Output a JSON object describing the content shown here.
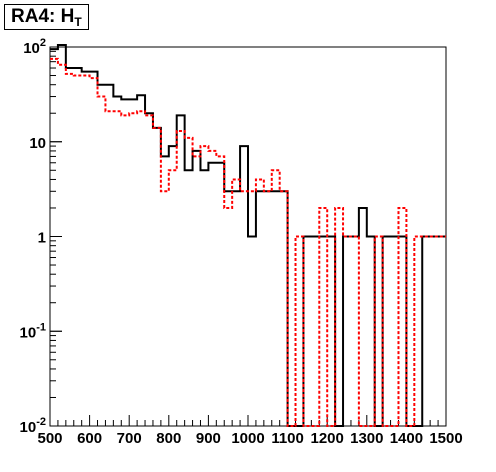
{
  "chart_data": {
    "type": "histogram",
    "title": "RA4: H",
    "title_subscript": "T",
    "xlabel": "",
    "ylabel": "",
    "xlim": [
      500,
      1500
    ],
    "ylim": [
      0.01,
      100
    ],
    "yscale": "log",
    "grid": false,
    "legend": "none",
    "x_ticks": [
      500,
      600,
      700,
      800,
      900,
      1000,
      1100,
      1200,
      1300,
      1400,
      1500
    ],
    "x_tick_labels": [
      "500",
      "600",
      "700",
      "800",
      "900",
      "1000",
      "1100",
      "1200",
      "1300",
      "1400",
      "1500"
    ],
    "y_ticks": [
      {
        "value": 0.01,
        "base": "10",
        "exp": "-2"
      },
      {
        "value": 0.1,
        "base": "10",
        "exp": "-1"
      },
      {
        "value": 1,
        "base": "1",
        "exp": ""
      },
      {
        "value": 10,
        "base": "10",
        "exp": ""
      },
      {
        "value": 100,
        "base": "10",
        "exp": "2"
      }
    ],
    "bin_edges": [
      500,
      520,
      540,
      560,
      580,
      600,
      620,
      640,
      660,
      680,
      700,
      720,
      740,
      760,
      780,
      800,
      820,
      840,
      860,
      880,
      900,
      920,
      940,
      960,
      980,
      1000,
      1020,
      1040,
      1060,
      1080,
      1100,
      1120,
      1140,
      1160,
      1180,
      1200,
      1220,
      1240,
      1260,
      1280,
      1300,
      1320,
      1340,
      1360,
      1380,
      1400,
      1420,
      1440,
      1460,
      1480,
      1500
    ],
    "series": [
      {
        "color": "#000000",
        "line_style": "solid",
        "values": [
          95,
          105,
          60,
          60,
          55,
          55,
          40,
          40,
          30,
          28,
          28,
          31,
          20,
          14,
          7,
          9,
          19,
          5,
          8,
          5,
          6,
          6,
          3,
          3,
          9,
          1,
          3,
          3,
          3,
          3,
          0,
          0,
          1,
          1,
          1,
          1,
          0,
          1,
          1,
          2,
          1,
          0,
          1,
          1,
          1,
          0,
          0,
          1,
          1,
          1
        ]
      },
      {
        "color": "#ff0000",
        "line_style": "dotted",
        "values": [
          75,
          65,
          52,
          50,
          50,
          47,
          30,
          21,
          21,
          19,
          20,
          21,
          19,
          14,
          3,
          5,
          13,
          11,
          7,
          9,
          8,
          7,
          2,
          4,
          3,
          3,
          4,
          3,
          5,
          3,
          0,
          1,
          0,
          0,
          2,
          0,
          2,
          1,
          1,
          0,
          0,
          1,
          0,
          0,
          2,
          0,
          1,
          1,
          1,
          1
        ]
      }
    ]
  }
}
